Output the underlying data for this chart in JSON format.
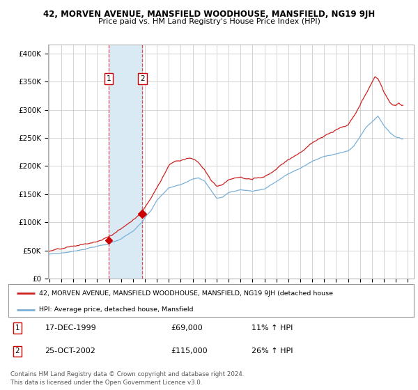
{
  "title": "42, MORVEN AVENUE, MANSFIELD WOODHOUSE, MANSFIELD, NG19 9JH",
  "subtitle": "Price paid vs. HM Land Registry's House Price Index (HPI)",
  "ylabel_ticks": [
    "£0",
    "£50K",
    "£100K",
    "£150K",
    "£200K",
    "£250K",
    "£300K",
    "£350K",
    "£400K"
  ],
  "ytick_values": [
    0,
    50000,
    100000,
    150000,
    200000,
    250000,
    300000,
    350000,
    400000
  ],
  "ylim": [
    0,
    415000
  ],
  "xlim_start": 1994.9,
  "xlim_end": 2025.5,
  "xtick_years": [
    1995,
    1996,
    1997,
    1998,
    1999,
    2000,
    2001,
    2002,
    2003,
    2004,
    2005,
    2006,
    2007,
    2008,
    2009,
    2010,
    2011,
    2012,
    2013,
    2014,
    2015,
    2016,
    2017,
    2018,
    2019,
    2020,
    2021,
    2022,
    2023,
    2024,
    2025
  ],
  "purchase1_x": 1999.958,
  "purchase1_y": 69000,
  "purchase2_x": 2002.792,
  "purchase2_y": 115000,
  "purchase1_date": "17-DEC-1999",
  "purchase1_price": "£69,000",
  "purchase1_hpi": "11% ↑ HPI",
  "purchase2_date": "25-OCT-2002",
  "purchase2_price": "£115,000",
  "purchase2_hpi": "26% ↑ HPI",
  "shade_color": "#daeaf5",
  "dashed_color": "#dd3333",
  "marker_color": "#cc0000",
  "hpi_color": "#7ab0d8",
  "price_color": "#cc2222",
  "grid_color": "#cccccc",
  "bg_color": "#ffffff",
  "legend_line1": "42, MORVEN AVENUE, MANSFIELD WOODHOUSE, MANSFIELD, NG19 9JH (detached house",
  "legend_line2": "HPI: Average price, detached house, Mansfield",
  "footnote": "Contains HM Land Registry data © Crown copyright and database right 2024.\nThis data is licensed under the Open Government Licence v3.0."
}
